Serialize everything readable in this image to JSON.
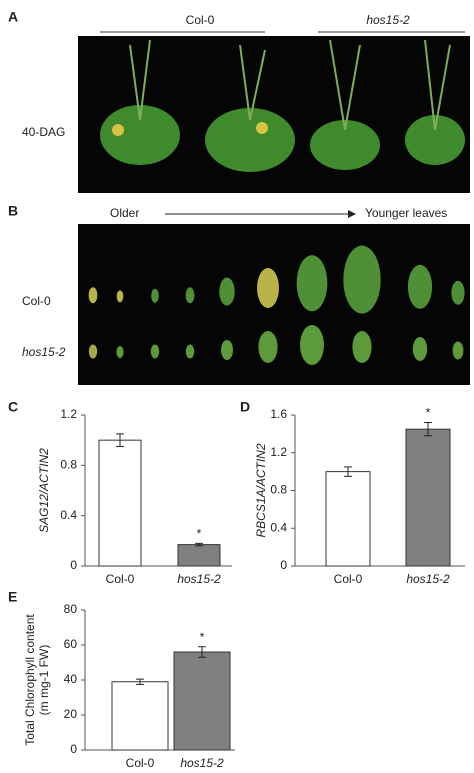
{
  "panel_a": {
    "label": "A",
    "groups": [
      "Col-0",
      "hos15-2"
    ],
    "row_label": "40-DAG"
  },
  "panel_b": {
    "label": "B",
    "start": "Older",
    "end": "Younger leaves",
    "rows": [
      "Col-0",
      "hos15-2"
    ]
  },
  "chart_data": [
    {
      "type": "bar",
      "label": "C",
      "ylabel": [
        "SAG12/ACTIN2"
      ],
      "categories": [
        "Col-0",
        "hos15-2"
      ],
      "values": [
        1.0,
        0.17
      ],
      "errors": [
        0.05,
        0.01
      ],
      "colors": [
        "#ffffff",
        "#808080"
      ],
      "ylim": [
        0,
        1.2
      ],
      "yticks": [
        0,
        0.4,
        0.8,
        1.2
      ],
      "annotation": "*"
    },
    {
      "type": "bar",
      "label": "D",
      "ylabel": [
        "RBCS1A/ACTIN2"
      ],
      "categories": [
        "Col-0",
        "hos15-2"
      ],
      "values": [
        1.0,
        1.45
      ],
      "errors": [
        0.05,
        0.07
      ],
      "colors": [
        "#ffffff",
        "#808080"
      ],
      "ylim": [
        0,
        1.6
      ],
      "yticks": [
        0,
        0.4,
        0.8,
        1.2,
        1.6
      ],
      "annotation": "*"
    },
    {
      "type": "bar",
      "label": "E",
      "ylabel": [
        "Total Chlorophyll content",
        "(m mg-1 FW)"
      ],
      "categories": [
        "Col-0",
        "hos15-2"
      ],
      "values": [
        39,
        56
      ],
      "errors": [
        1.5,
        3
      ],
      "colors": [
        "#ffffff",
        "#808080"
      ],
      "ylim": [
        0,
        80
      ],
      "yticks": [
        0,
        20,
        40,
        60,
        80
      ],
      "annotation": "*"
    }
  ]
}
